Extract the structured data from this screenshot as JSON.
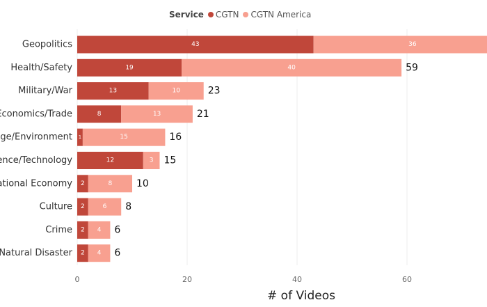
{
  "chart_data": {
    "type": "bar",
    "orientation": "horizontal",
    "stacked": true,
    "legend": {
      "title": "Service",
      "position": "top"
    },
    "categories": [
      "Geopolitics",
      "Health/Safety",
      "Military/War",
      "Economics/Trade",
      "Climate Change/Environment",
      "Science/Technology",
      "National Economy",
      "Culture",
      "Crime",
      "Natural Disaster"
    ],
    "category_tick_labels": [
      "Geopolitics",
      "Health/Safety",
      "Military/War",
      "Economics/Trade",
      "nge/Environment",
      "ience/Technology",
      "National Economy",
      "Culture",
      "Crime",
      "Natural Disaster"
    ],
    "series": [
      {
        "name": "CGTN",
        "color": "#c0473a",
        "values": [
          43,
          19,
          13,
          8,
          1,
          12,
          2,
          2,
          2,
          2
        ]
      },
      {
        "name": "CGTN America",
        "color": "#f8a090",
        "values": [
          36,
          40,
          10,
          13,
          15,
          3,
          8,
          6,
          4,
          4
        ]
      }
    ],
    "totals": [
      null,
      59,
      23,
      21,
      16,
      15,
      10,
      8,
      6,
      6
    ],
    "xlabel": "# of Videos",
    "ylabel": "",
    "xlim": [
      0,
      75
    ],
    "xticks": [
      0,
      20,
      40,
      60
    ],
    "grid": true
  }
}
